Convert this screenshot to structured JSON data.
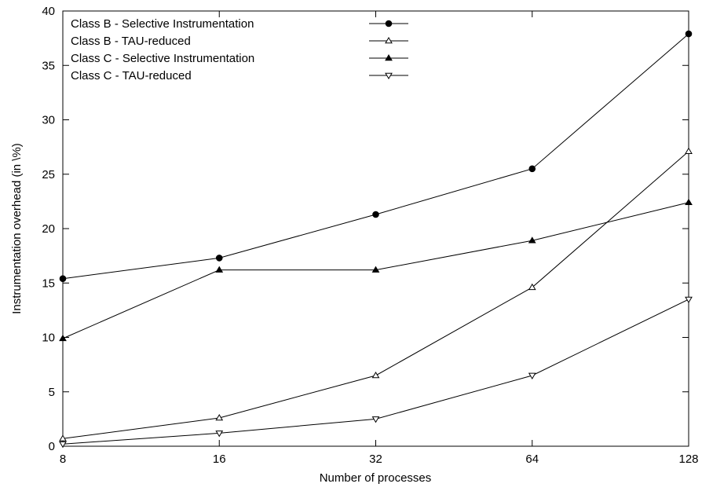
{
  "chart_data": {
    "type": "line",
    "xlabel": "Number of processes",
    "ylabel": "Instrumentation overhead (in \\%)",
    "x": [
      8,
      16,
      32,
      64,
      128
    ],
    "x_scale": "log2",
    "ylim": [
      0,
      40
    ],
    "yticks": [
      0,
      5,
      10,
      15,
      20,
      25,
      30,
      35,
      40
    ],
    "grid": false,
    "legend_position": "top-left",
    "series": [
      {
        "name": "Class B - Selective Instrumentation",
        "marker": "filled-circle",
        "values": [
          15.4,
          17.3,
          21.3,
          25.5,
          37.9
        ]
      },
      {
        "name": "Class B - TAU-reduced",
        "marker": "open-triangle-up",
        "values": [
          0.7,
          2.6,
          6.5,
          14.6,
          27.1
        ]
      },
      {
        "name": "Class C - Selective Instrumentation",
        "marker": "filled-triangle-up",
        "values": [
          9.9,
          16.2,
          16.2,
          18.9,
          22.4
        ]
      },
      {
        "name": "Class C - TAU-reduced",
        "marker": "open-triangle-down",
        "values": [
          0.2,
          1.2,
          2.5,
          6.5,
          13.5
        ]
      }
    ]
  }
}
